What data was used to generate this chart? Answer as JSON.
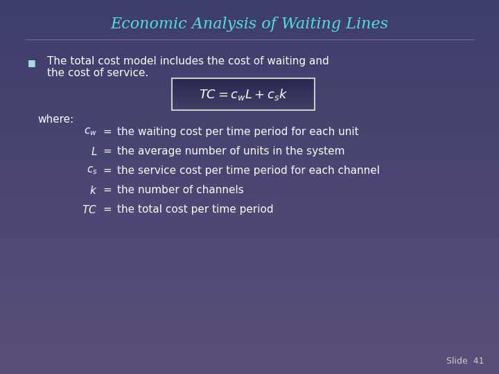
{
  "title": "Economic Analysis of Waiting Lines",
  "title_color": "#55DDDD",
  "bg_color_top": "#3d3d6b",
  "bg_color_bottom": "#5a4f7a",
  "text_color": "#ffffff",
  "slide_number": "Slide  41",
  "bullet_text_line1": "The total cost model includes the cost of waiting and",
  "bullet_text_line2": "the cost of service.",
  "where_label": "where:",
  "definitions": [
    [
      "c_w",
      "the waiting cost per time period for each unit"
    ],
    [
      "L",
      "the average number of units in the system"
    ],
    [
      "c_s",
      "the service cost per time period for each channel"
    ],
    [
      "k",
      "the number of channels"
    ],
    [
      "TC",
      "the total cost per time period"
    ]
  ]
}
